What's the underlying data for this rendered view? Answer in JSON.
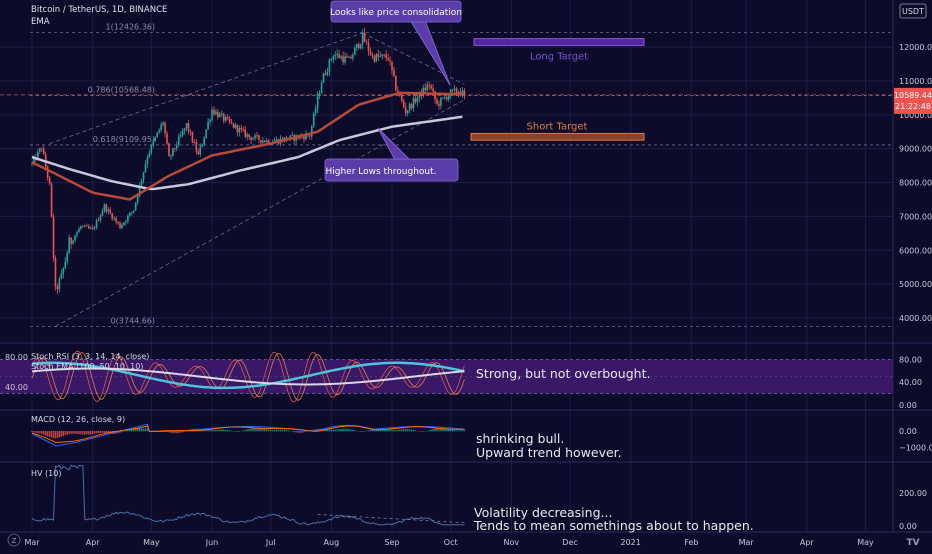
{
  "header": {
    "symbol": "Bitcoin / TetherUS, 1D, BINANCE",
    "indicator": "EMA",
    "currency": "USDT"
  },
  "colors": {
    "background": "#0c0c2a",
    "grid": "#1c1c48",
    "candle_up": "#26a69a",
    "candle_down": "#ef5350",
    "ema_fast": "#b84a3a",
    "ema_slow": "#c8c8dc",
    "callout_fill": "#5a3da8",
    "long_target": "#6a2fc4",
    "short_target": "#e0784a",
    "stoch_k": "#4fc3d9",
    "stoch_d": "#d8d8e8",
    "stoch_ema": "#e05050",
    "macd_line": "#2962ff",
    "signal_line": "#ff6d00",
    "hv_line": "#4a6fa5",
    "price_tag": "#ef5350"
  },
  "annotations": {
    "callout_top": "Looks like price consolidation",
    "callout_bottom": "Higher Lows throughout.",
    "long_target": "Long Target",
    "short_target": "Short Target",
    "stoch_note": "Strong, but not overbought.",
    "macd_note_1": "shrinking bull.",
    "macd_note_2": "Upward trend however.",
    "hv_note_1": "Volatility decreasing...",
    "hv_note_2": "Tends to mean somethings about to happen."
  },
  "price_tag": {
    "value": "10589.44",
    "time": "21:22:48"
  },
  "logo": "TV",
  "chart_data": {
    "type": "line",
    "x_ticks": [
      "Mar",
      "Apr",
      "May",
      "Jun",
      "Jul",
      "Aug",
      "Sep",
      "Oct",
      "Nov",
      "Dec",
      "2021",
      "Feb",
      "Mar",
      "Apr",
      "May"
    ],
    "price_axis": {
      "ticks": [
        "12000.00",
        "11000.00",
        "10000.00",
        "9000.00",
        "8000.00",
        "7000.00",
        "6000.00",
        "5000.00",
        "4000.00"
      ],
      "tick_values": [
        12000,
        11000,
        10000,
        9000,
        8000,
        7000,
        6000,
        5000,
        4000
      ],
      "ylim": [
        3350,
        12800
      ]
    },
    "fib_levels": [
      {
        "label": "1(12426.36)",
        "value": 12426.36
      },
      {
        "label": "0.786(10568.48)",
        "value": 10568.48
      },
      {
        "label": "0.618(9109.95)",
        "value": 9109.95
      },
      {
        "label": "0(3744.66)",
        "value": 3744.66
      }
    ],
    "targets": [
      {
        "label": "Long Target",
        "low": 12050,
        "high": 12250
      },
      {
        "label": "Short Target",
        "low": 9250,
        "high": 9450
      }
    ],
    "price_anchors": [
      [
        "2020-03-01",
        8550
      ],
      [
        "2020-03-06",
        9050
      ],
      [
        "2020-03-10",
        7900
      ],
      [
        "2020-03-13",
        4800
      ],
      [
        "2020-03-16",
        5200
      ],
      [
        "2020-03-20",
        6200
      ],
      [
        "2020-03-26",
        6700
      ],
      [
        "2020-04-01",
        6600
      ],
      [
        "2020-04-07",
        7300
      ],
      [
        "2020-04-15",
        6700
      ],
      [
        "2020-04-22",
        7200
      ],
      [
        "2020-04-29",
        8800
      ],
      [
        "2020-05-07",
        9800
      ],
      [
        "2020-05-10",
        8700
      ],
      [
        "2020-05-19",
        9700
      ],
      [
        "2020-05-25",
        8800
      ],
      [
        "2020-06-01",
        10150
      ],
      [
        "2020-06-10",
        9750
      ],
      [
        "2020-06-20",
        9350
      ],
      [
        "2020-07-01",
        9200
      ],
      [
        "2020-07-10",
        9300
      ],
      [
        "2020-07-21",
        9400
      ],
      [
        "2020-07-27",
        11000
      ],
      [
        "2020-08-02",
        11800
      ],
      [
        "2020-08-10",
        11600
      ],
      [
        "2020-08-17",
        12300
      ],
      [
        "2020-08-22",
        11700
      ],
      [
        "2020-08-30",
        11700
      ],
      [
        "2020-09-03",
        10800
      ],
      [
        "2020-09-08",
        10100
      ],
      [
        "2020-09-13",
        10450
      ],
      [
        "2020-09-20",
        10900
      ],
      [
        "2020-09-24",
        10300
      ],
      [
        "2020-10-01",
        10650
      ],
      [
        "2020-10-05",
        10700
      ],
      [
        "2020-10-08",
        10589
      ]
    ],
    "ema_fast_anchors": [
      [
        "2020-03-01",
        8600
      ],
      [
        "2020-03-15",
        8200
      ],
      [
        "2020-04-01",
        7700
      ],
      [
        "2020-04-20",
        7500
      ],
      [
        "2020-05-10",
        8200
      ],
      [
        "2020-06-01",
        8800
      ],
      [
        "2020-07-01",
        9150
      ],
      [
        "2020-07-25",
        9500
      ],
      [
        "2020-08-15",
        10300
      ],
      [
        "2020-09-05",
        10650
      ],
      [
        "2020-09-25",
        10620
      ],
      [
        "2020-10-08",
        10600
      ]
    ],
    "ema_slow_anchors": [
      [
        "2020-03-01",
        8750
      ],
      [
        "2020-03-20",
        8400
      ],
      [
        "2020-04-10",
        8050
      ],
      [
        "2020-05-01",
        7800
      ],
      [
        "2020-05-20",
        7950
      ],
      [
        "2020-06-15",
        8350
      ],
      [
        "2020-07-15",
        8750
      ],
      [
        "2020-08-05",
        9250
      ],
      [
        "2020-09-01",
        9650
      ],
      [
        "2020-10-08",
        9950
      ]
    ],
    "stoch_rsi": {
      "label": "Stoch RSI (3, 3, 14, 14, close)",
      "ema_label": "Stoch EMA (100, 50, 10, 10)",
      "left_ticks": [
        "80.00",
        "40.00"
      ],
      "right_ticks": [
        "80.00",
        "40.00",
        "0.00"
      ],
      "right_tick_values": [
        80,
        40,
        0
      ],
      "band": [
        20,
        80
      ]
    },
    "macd": {
      "label": "MACD (12, 26, close, 9)",
      "right_ticks": [
        "0.00",
        "−1000.00"
      ],
      "right_tick_values": [
        0,
        -1000
      ]
    },
    "hv": {
      "label": "HV (10)",
      "right_ticks": [
        "200.00",
        "0.00"
      ],
      "right_tick_values": [
        200,
        0
      ]
    }
  }
}
